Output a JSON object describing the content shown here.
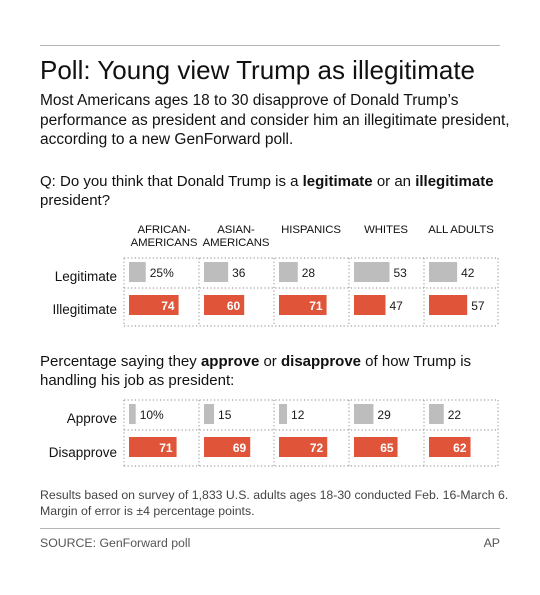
{
  "title": "Poll: Young view Trump as illegitimate",
  "subtitle": "Most Americans ages 18 to 30 disapprove of Donald Trump’s performance as president and consider him an illegitimate president, according to a new GenForward poll.",
  "q1": {
    "text_a": "Q: Do you think that Donald Trump is a ",
    "bold_a": "legitimate",
    "text_b": " or an ",
    "bold_b": "illegitimate",
    "text_c": " president?"
  },
  "q2": {
    "text_a": "Percentage saying they ",
    "bold_a": "approve",
    "text_b": " or ",
    "bold_b": "disapprove",
    "text_c": " of how Trump is handling his job as president:"
  },
  "columns": [
    {
      "line1": "AFRICAN-",
      "line2": "AMERICANS"
    },
    {
      "line1": "ASIAN-",
      "line2": "AMERICANS"
    },
    {
      "line1": "",
      "line2": "HISPANICS"
    },
    {
      "line1": "",
      "line2": "WHITES"
    },
    {
      "line1": "",
      "line2": "ALL ADULTS"
    }
  ],
  "note": "Results based on survey of 1,833 U.S. adults ages 18-30 conducted Feb. 16-March 6. Margin of error is ±4 percentage points.",
  "source": "SOURCE: GenForward poll",
  "credit": "AP",
  "colors": {
    "gray": "#bdbdbd",
    "orange": "#e0553a",
    "dots": "#a0a0a0"
  },
  "chart_data": [
    {
      "type": "bar",
      "categories": [
        "AFRICAN-AMERICANS",
        "ASIAN-AMERICANS",
        "HISPANICS",
        "WHITES",
        "ALL ADULTS"
      ],
      "series": [
        {
          "name": "Legitimate",
          "color": "#bdbdbd",
          "values": [
            25,
            36,
            28,
            53,
            42
          ],
          "labels": [
            "25%",
            "36",
            "28",
            "53",
            "42"
          ]
        },
        {
          "name": "Illegitimate",
          "color": "#e0553a",
          "values": [
            74,
            60,
            71,
            47,
            57
          ],
          "labels": [
            "74",
            "60",
            "71",
            "47",
            "57"
          ]
        }
      ],
      "ylim": [
        0,
        100
      ]
    },
    {
      "type": "bar",
      "categories": [
        "AFRICAN-AMERICANS",
        "ASIAN-AMERICANS",
        "HISPANICS",
        "WHITES",
        "ALL ADULTS"
      ],
      "series": [
        {
          "name": "Approve",
          "color": "#bdbdbd",
          "values": [
            10,
            15,
            12,
            29,
            22
          ],
          "labels": [
            "10%",
            "15",
            "12",
            "29",
            "22"
          ]
        },
        {
          "name": "Disapprove",
          "color": "#e0553a",
          "values": [
            71,
            69,
            72,
            65,
            62
          ],
          "labels": [
            "71",
            "69",
            "72",
            "65",
            "62"
          ]
        }
      ],
      "ylim": [
        0,
        100
      ]
    }
  ]
}
